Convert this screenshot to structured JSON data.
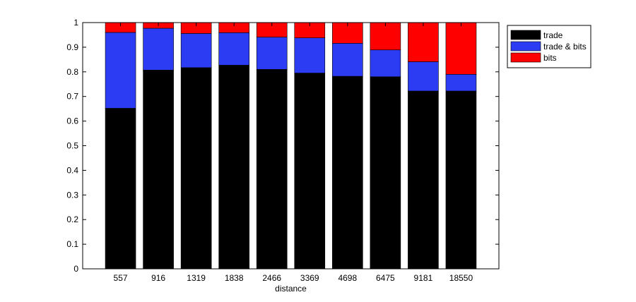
{
  "chart_data": {
    "type": "bar",
    "stacked": true,
    "categories": [
      "557",
      "916",
      "1319",
      "1838",
      "2466",
      "3369",
      "4698",
      "6475",
      "9181",
      "18550"
    ],
    "series": [
      {
        "name": "trade",
        "color": "#000000",
        "values": [
          0.652,
          0.807,
          0.817,
          0.827,
          0.81,
          0.795,
          0.782,
          0.78,
          0.722,
          0.722
        ]
      },
      {
        "name": "trade & bits",
        "color": "#2b3cf2",
        "values": [
          0.308,
          0.17,
          0.139,
          0.132,
          0.131,
          0.143,
          0.134,
          0.109,
          0.119,
          0.068
        ]
      },
      {
        "name": "bits",
        "color": "#ff0000",
        "values": [
          0.04,
          0.023,
          0.044,
          0.041,
          0.059,
          0.062,
          0.084,
          0.111,
          0.159,
          0.21
        ]
      }
    ],
    "xlabel": "distance",
    "ylabel": "",
    "ylim": [
      0,
      1
    ],
    "yticks": [
      "0",
      "0.1",
      "0.2",
      "0.3",
      "0.4",
      "0.5",
      "0.6",
      "0.7",
      "0.8",
      "0.9",
      "1"
    ],
    "grid": false,
    "legend": "top-right, outside plot area"
  }
}
